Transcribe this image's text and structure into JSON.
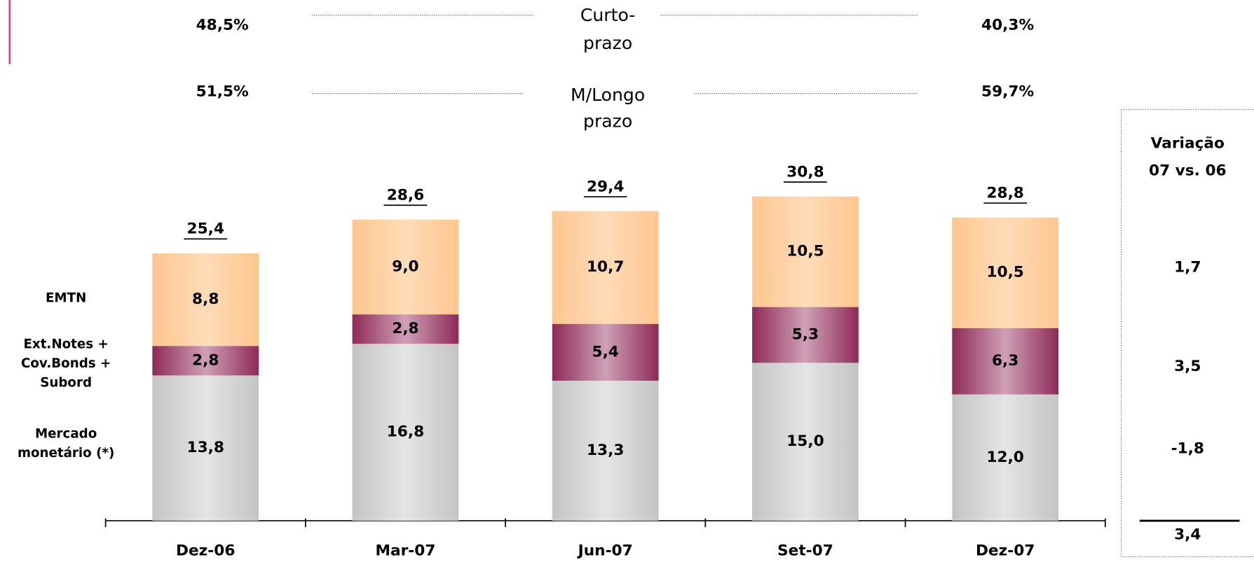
{
  "chart_data": {
    "type": "bar",
    "stacked": true,
    "categories": [
      "Dez-06",
      "Mar-07",
      "Jun-07",
      "Set-07",
      "Dez-07"
    ],
    "series": [
      {
        "name": "Mercado monetário (*)",
        "color": "#c4c4c4",
        "highlight": "#e4e4e4",
        "values": [
          13.8,
          16.8,
          13.3,
          15.0,
          12.0
        ],
        "value_labels": [
          "13,8",
          "16,8",
          "13,3",
          "15,0",
          "12,0"
        ]
      },
      {
        "name": "Ext.Notes + Cov.Bonds + Subord",
        "color": "#8e2a58",
        "highlight": "#cfa0b6",
        "values": [
          2.8,
          2.8,
          5.4,
          5.3,
          6.3
        ],
        "value_labels": [
          "2,8",
          "2,8",
          "5,4",
          "5,3",
          "6,3"
        ]
      },
      {
        "name": "EMTN",
        "color": "#ffc58f",
        "highlight": "#ffdcb8",
        "values": [
          8.8,
          9.0,
          10.7,
          10.5,
          10.5
        ],
        "value_labels": [
          "8,8",
          "9,0",
          "10,7",
          "10,5",
          "10,5"
        ]
      }
    ],
    "totals": [
      25.4,
      28.6,
      29.4,
      30.8,
      28.8
    ],
    "total_labels": [
      "25,4",
      "28,6",
      "29,4",
      "30,8",
      "28,8"
    ],
    "ylim": [
      0,
      40
    ],
    "maturity": [
      {
        "label": [
          "Curto-",
          "prazo"
        ],
        "start": "48,5%",
        "end": "40,3%"
      },
      {
        "label": [
          "M/Longo",
          "prazo"
        ],
        "start": "51,5%",
        "end": "59,7%"
      }
    ],
    "variation": {
      "title": [
        "Variação",
        "07 vs. 06"
      ],
      "values": [
        -1.8,
        3.5,
        1.7
      ],
      "value_labels": [
        "-1,8",
        "3,5",
        "1,7"
      ],
      "total": 3.4,
      "total_label": "3,4"
    }
  }
}
